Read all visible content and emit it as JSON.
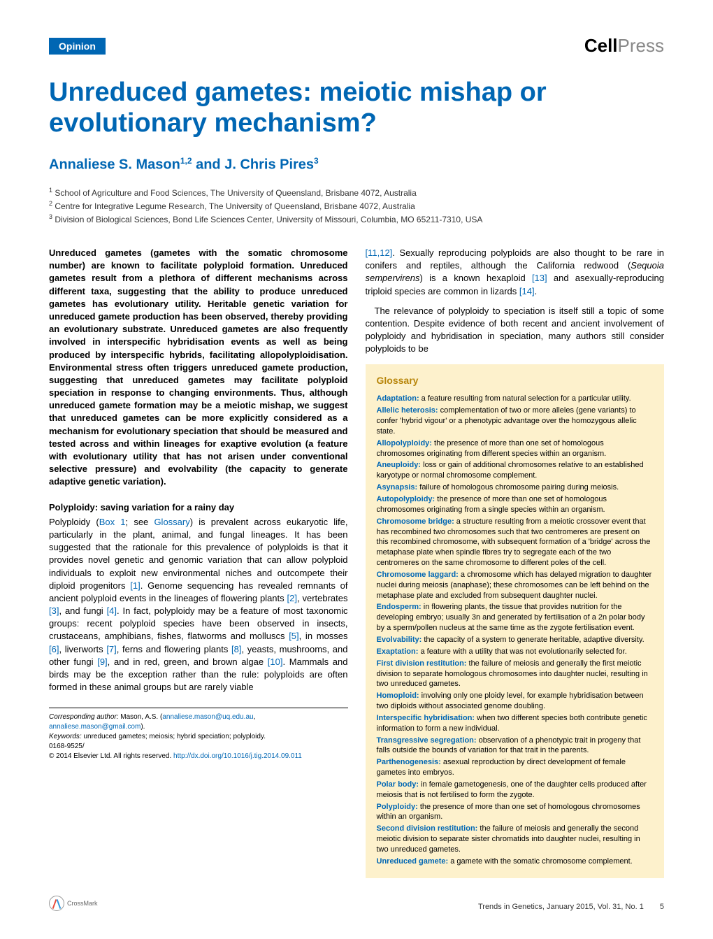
{
  "header": {
    "badge": "Opinion",
    "logo_cell": "Cell",
    "logo_press": "Press"
  },
  "title": "Unreduced gametes: meiotic mishap or evolutionary mechanism?",
  "authors": "Annaliese S. Mason",
  "authors_sup1": "1,2",
  "authors_and": " and J. Chris Pires",
  "authors_sup2": "3",
  "affiliations": [
    {
      "num": "1",
      "text": " School of Agriculture and Food Sciences, The University of Queensland, Brisbane 4072, Australia"
    },
    {
      "num": "2",
      "text": " Centre for Integrative Legume Research, The University of Queensland, Brisbane 4072, Australia"
    },
    {
      "num": "3",
      "text": " Division of Biological Sciences, Bond Life Sciences Center, University of Missouri, Columbia, MO 65211-7310, USA"
    }
  ],
  "abstract": "Unreduced gametes (gametes with the somatic chromosome number) are known to facilitate polyploid formation. Unreduced gametes result from a plethora of different mechanisms across different taxa, suggesting that the ability to produce unreduced gametes has evolutionary utility. Heritable genetic variation for unreduced gamete production has been observed, thereby providing an evolutionary substrate. Unreduced gametes are also frequently involved in interspecific hybridisation events as well as being produced by interspecific hybrids, facilitating allopolyploidisation. Environmental stress often triggers unreduced gamete production, suggesting that unreduced gametes may facilitate polyploid speciation in response to changing environments. Thus, although unreduced gamete formation may be a meiotic mishap, we suggest that unreduced gametes can be more explicitly considered as a mechanism for evolutionary speciation that should be measured and tested across and within lineages for exaptive evolution (a feature with evolutionary utility that has not arisen under conventional selective pressure) and evolvability (the capacity to generate adaptive genetic variation).",
  "section1_heading": "Polyploidy: saving variation for a rainy day",
  "section1_p1_a": "Polyploidy (",
  "section1_p1_box": "Box 1",
  "section1_p1_b": "; see ",
  "section1_p1_gloss": "Glossary",
  "section1_p1_c": ") is prevalent across eukaryotic life, particularly in the plant, animal, and fungal lineages. It has been suggested that the rationale for this prevalence of polyploids is that it provides novel genetic and genomic variation that can allow polyploid individuals to exploit new environmental niches and outcompete their diploid progenitors ",
  "section1_p1_r1": "[1]",
  "section1_p1_d": ". Genome sequencing has revealed remnants of ancient polyploid events in the lineages of flowering plants ",
  "section1_p1_r2": "[2]",
  "section1_p1_e": ", vertebrates ",
  "section1_p1_r3": "[3]",
  "section1_p1_f": ", and fungi ",
  "section1_p1_r4": "[4]",
  "section1_p1_g": ". In fact, polyploidy may be a feature of most taxonomic groups: recent polyploid species have been observed in insects, crustaceans, amphibians, fishes, flatworms and molluscs ",
  "section1_p1_r5": "[5]",
  "section1_p1_h": ", in mosses ",
  "section1_p1_r6": "[6]",
  "section1_p1_i": ", liverworts ",
  "section1_p1_r7": "[7]",
  "section1_p1_j": ", ferns and flowering plants ",
  "section1_p1_r8": "[8]",
  "section1_p1_k": ", yeasts, mushrooms, and other fungi ",
  "section1_p1_r9": "[9]",
  "section1_p1_l": ", and in red, green, and brown algae ",
  "section1_p1_r10": "[10]",
  "section1_p1_m": ". Mammals and birds may be the exception rather than the rule: polyploids are often formed in these animal groups but are rarely viable",
  "col2_p1_a": "",
  "col2_p1_r11": "[11,12]",
  "col2_p1_b": ". Sexually reproducing polyploids are also thought to be rare in conifers and reptiles, although the California redwood (",
  "col2_p1_sp": "Sequoia sempervirens",
  "col2_p1_c": ") is a known hexaploid ",
  "col2_p1_r13": "[13]",
  "col2_p1_d": " and asexually-reproducing triploid species are common in lizards ",
  "col2_p1_r14": "[14]",
  "col2_p1_e": ".",
  "col2_p2": "The relevance of polyploidy to speciation is itself still a topic of some contention. Despite evidence of both recent and ancient involvement of polyploidy and hybridisation in speciation, many authors still consider polyploids to be",
  "glossary": {
    "title": "Glossary",
    "items": [
      {
        "term": "Adaptation:",
        "def": " a feature resulting from natural selection for a particular utility."
      },
      {
        "term": "Allelic heterosis:",
        "def": " complementation of two or more alleles (gene variants) to confer 'hybrid vigour' or a phenotypic advantage over the homozygous allelic state."
      },
      {
        "term": "Allopolyploidy:",
        "def": " the presence of more than one set of homologous chromosomes originating from different species within an organism."
      },
      {
        "term": "Aneuploidy:",
        "def": " loss or gain of additional chromosomes relative to an established karyotype or normal chromosome complement."
      },
      {
        "term": "Asynapsis:",
        "def": " failure of homologous chromosome pairing during meiosis."
      },
      {
        "term": "Autopolyploidy:",
        "def": " the presence of more than one set of homologous chromosomes originating from a single species within an organism."
      },
      {
        "term": "Chromosome bridge:",
        "def": " a structure resulting from a meiotic crossover event that has recombined two chromosomes such that two centromeres are present on this recombined chromosome, with subsequent formation of a 'bridge' across the metaphase plate when spindle fibres try to segregate each of the two centromeres on the same chromosome to different poles of the cell."
      },
      {
        "term": "Chromosome laggard:",
        "def": " a chromosome which has delayed migration to daughter nuclei during meiosis (anaphase); these chromosomes can be left behind on the metaphase plate and excluded from subsequent daughter nuclei."
      },
      {
        "term": "Endosperm:",
        "def": " in flowering plants, the tissue that provides nutrition for the developing embryo; usually 3n and generated by fertilisation of a 2n polar body by a sperm/pollen nucleus at the same time as the zygote fertilisation event."
      },
      {
        "term": "Evolvability:",
        "def": " the capacity of a system to generate heritable, adaptive diversity."
      },
      {
        "term": "Exaptation:",
        "def": " a feature with a utility that was not evolutionarily selected for."
      },
      {
        "term": "First division restitution:",
        "def": " the failure of meiosis and generally the first meiotic division to separate homologous chromosomes into daughter nuclei, resulting in two unreduced gametes."
      },
      {
        "term": "Homoploid:",
        "def": " involving only one ploidy level, for example hybridisation between two diploids without associated genome doubling."
      },
      {
        "term": "Interspecific hybridisation:",
        "def": " when two different species both contribute genetic information to form a new individual."
      },
      {
        "term": "Transgressive segregation:",
        "def": " observation of a phenotypic trait in progeny that falls outside the bounds of variation for that trait in the parents."
      },
      {
        "term": "Parthenogenesis:",
        "def": " asexual reproduction by direct development of female gametes into embryos."
      },
      {
        "term": "Polar body:",
        "def": " in female gametogenesis, one of the daughter cells produced after meiosis that is not fertilised to form the zygote."
      },
      {
        "term": "Polyploidy:",
        "def": " the presence of more than one set of homologous chromosomes within an organism."
      },
      {
        "term": "Second division restitution:",
        "def": " the failure of meiosis and generally the second meiotic division to separate sister chromatids into daughter nuclei, resulting in two unreduced gametes."
      },
      {
        "term": "Unreduced gamete:",
        "def": " a gamete with the somatic chromosome complement."
      }
    ]
  },
  "footer": {
    "corresponding_label": "Corresponding author:",
    "corresponding_name": " Mason, A.S. (",
    "email1": "annaliese.mason@uq.edu.au",
    "comma": ", ",
    "email2": "annaliese.mason@gmail.com",
    "close": ").",
    "keywords_label": "Keywords:",
    "keywords": " unreduced gametes; meiosis; hybrid speciation; polyploidy.",
    "issn": "0168-9525/",
    "copyright": "© 2014 Elsevier Ltd. All rights reserved. ",
    "doi": "http://dx.doi.org/10.1016/j.tig.2014.09.011"
  },
  "page_footer": {
    "crossmark": "CrossMark",
    "journal": "Trends in Genetics, January 2015, Vol. 31, No. 1",
    "page": "5"
  },
  "colors": {
    "brand_blue": "#0066b3",
    "glossary_bg": "#fdf1cc",
    "glossary_title": "#b8860b"
  }
}
